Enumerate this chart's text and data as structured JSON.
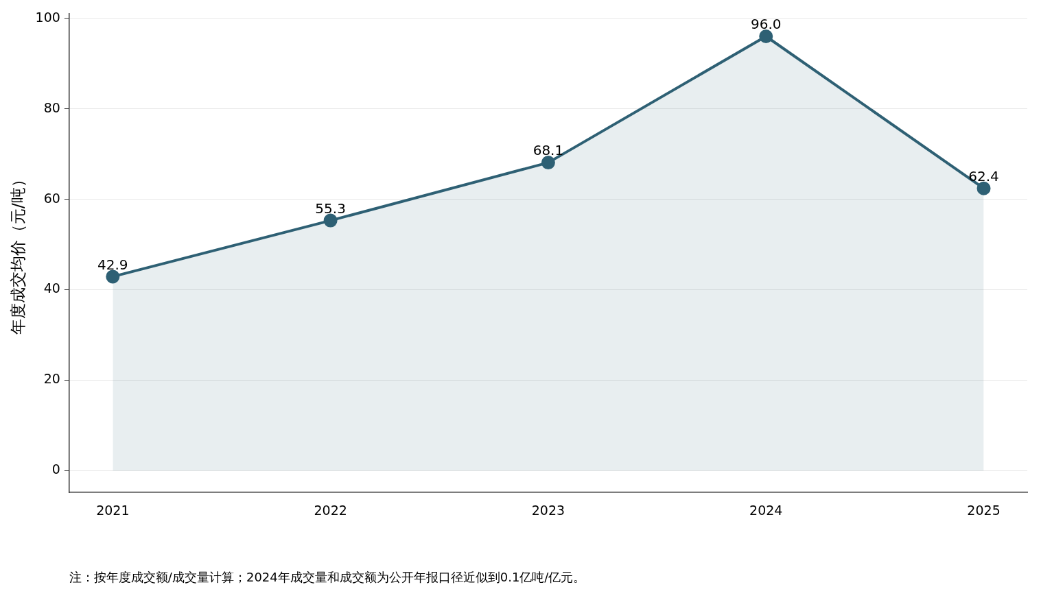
{
  "chart_data": {
    "type": "area",
    "ylabel": "年度成交均价（元/吨）",
    "x": [
      2021,
      2022,
      2023,
      2024,
      2025
    ],
    "series": [
      {
        "color": "#2e6074",
        "values": [
          42.9,
          55.3,
          68.1,
          96.0,
          62.4
        ],
        "value_labels": [
          "42.9",
          "55.3",
          "68.1",
          "96.0",
          "62.4"
        ]
      }
    ],
    "xlim": [
      2020.8,
      2025.2
    ],
    "xticks": [
      2021,
      2022,
      2023,
      2024,
      2025
    ],
    "ylim": [
      -4.8,
      101
    ],
    "yticks": [
      0,
      20,
      40,
      60,
      80,
      100
    ],
    "grid": "y",
    "legend": false,
    "marker": "circle",
    "line_style": "solid",
    "annotations": [
      "注：按年度成交额/成交量计算；2024年成交量和成交额为公开年报口径近似到0.1亿吨/亿元。"
    ]
  }
}
